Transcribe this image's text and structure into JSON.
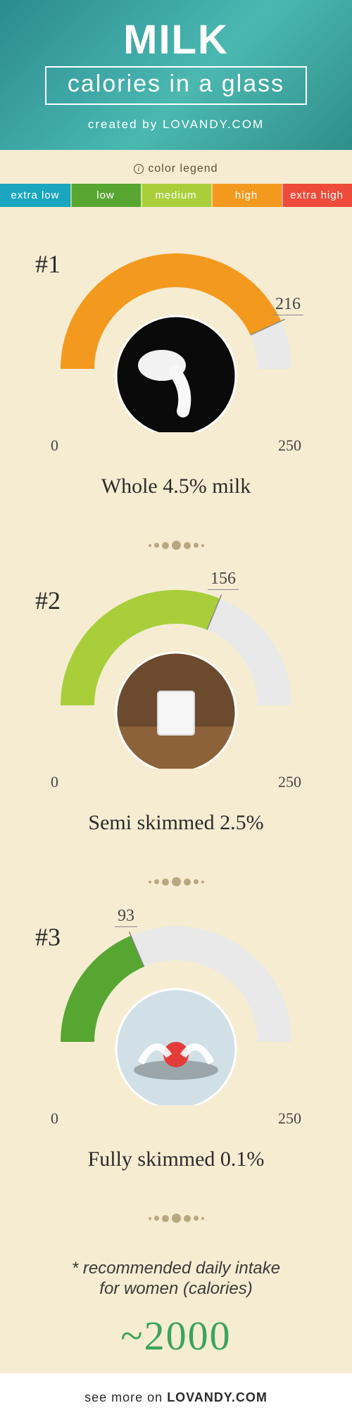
{
  "header": {
    "title": "MILK",
    "subtitle": "calories in a glass",
    "credit_prefix": "created by ",
    "credit_site": "LOVANDY.COM",
    "bg_gradient": [
      "#2b8b8e",
      "#4bb8b0"
    ],
    "text_color": "#ffffff",
    "title_fontsize": 58,
    "subtitle_fontsize": 34
  },
  "legend": {
    "title": "color legend",
    "items": [
      {
        "label": "extra low",
        "color": "#1ba6bf"
      },
      {
        "label": "low",
        "color": "#57a631"
      },
      {
        "label": "medium",
        "color": "#a8cf3a"
      },
      {
        "label": "high",
        "color": "#f39a1e"
      },
      {
        "label": "extra high",
        "color": "#ee4b3a"
      }
    ]
  },
  "gauge_defaults": {
    "min": 0,
    "max": 250,
    "track_color": "#e9e9e9",
    "arc_thickness": 48,
    "card_bg": "#f6ecd2",
    "label_font": "Times New Roman",
    "label_fontsize": 22
  },
  "milks": [
    {
      "rank": "#1",
      "name": "Whole 4.5% milk",
      "value": 216,
      "fill_color": "#f39a1e",
      "photo_hint": "milk-pouring-from-bottle"
    },
    {
      "rank": "#2",
      "name": "Semi skimmed 2.5%",
      "value": 156,
      "fill_color": "#a8cf3a",
      "photo_hint": "glass-of-milk"
    },
    {
      "rank": "#3",
      "name": "Fully skimmed 0.1%",
      "value": 93,
      "fill_color": "#57a631",
      "photo_hint": "milk-splash-with-cherry"
    }
  ],
  "footnote": {
    "asterisk": "*",
    "text_line1": "recommended daily intake",
    "text_line2": "for women (calories)",
    "value": "~2000",
    "value_color": "#3aa45a",
    "value_fontsize": 58,
    "text_fontsize": 24
  },
  "footer": {
    "prefix": "see more on ",
    "site": "LOVANDY.COM",
    "bg": "#ffffff"
  }
}
